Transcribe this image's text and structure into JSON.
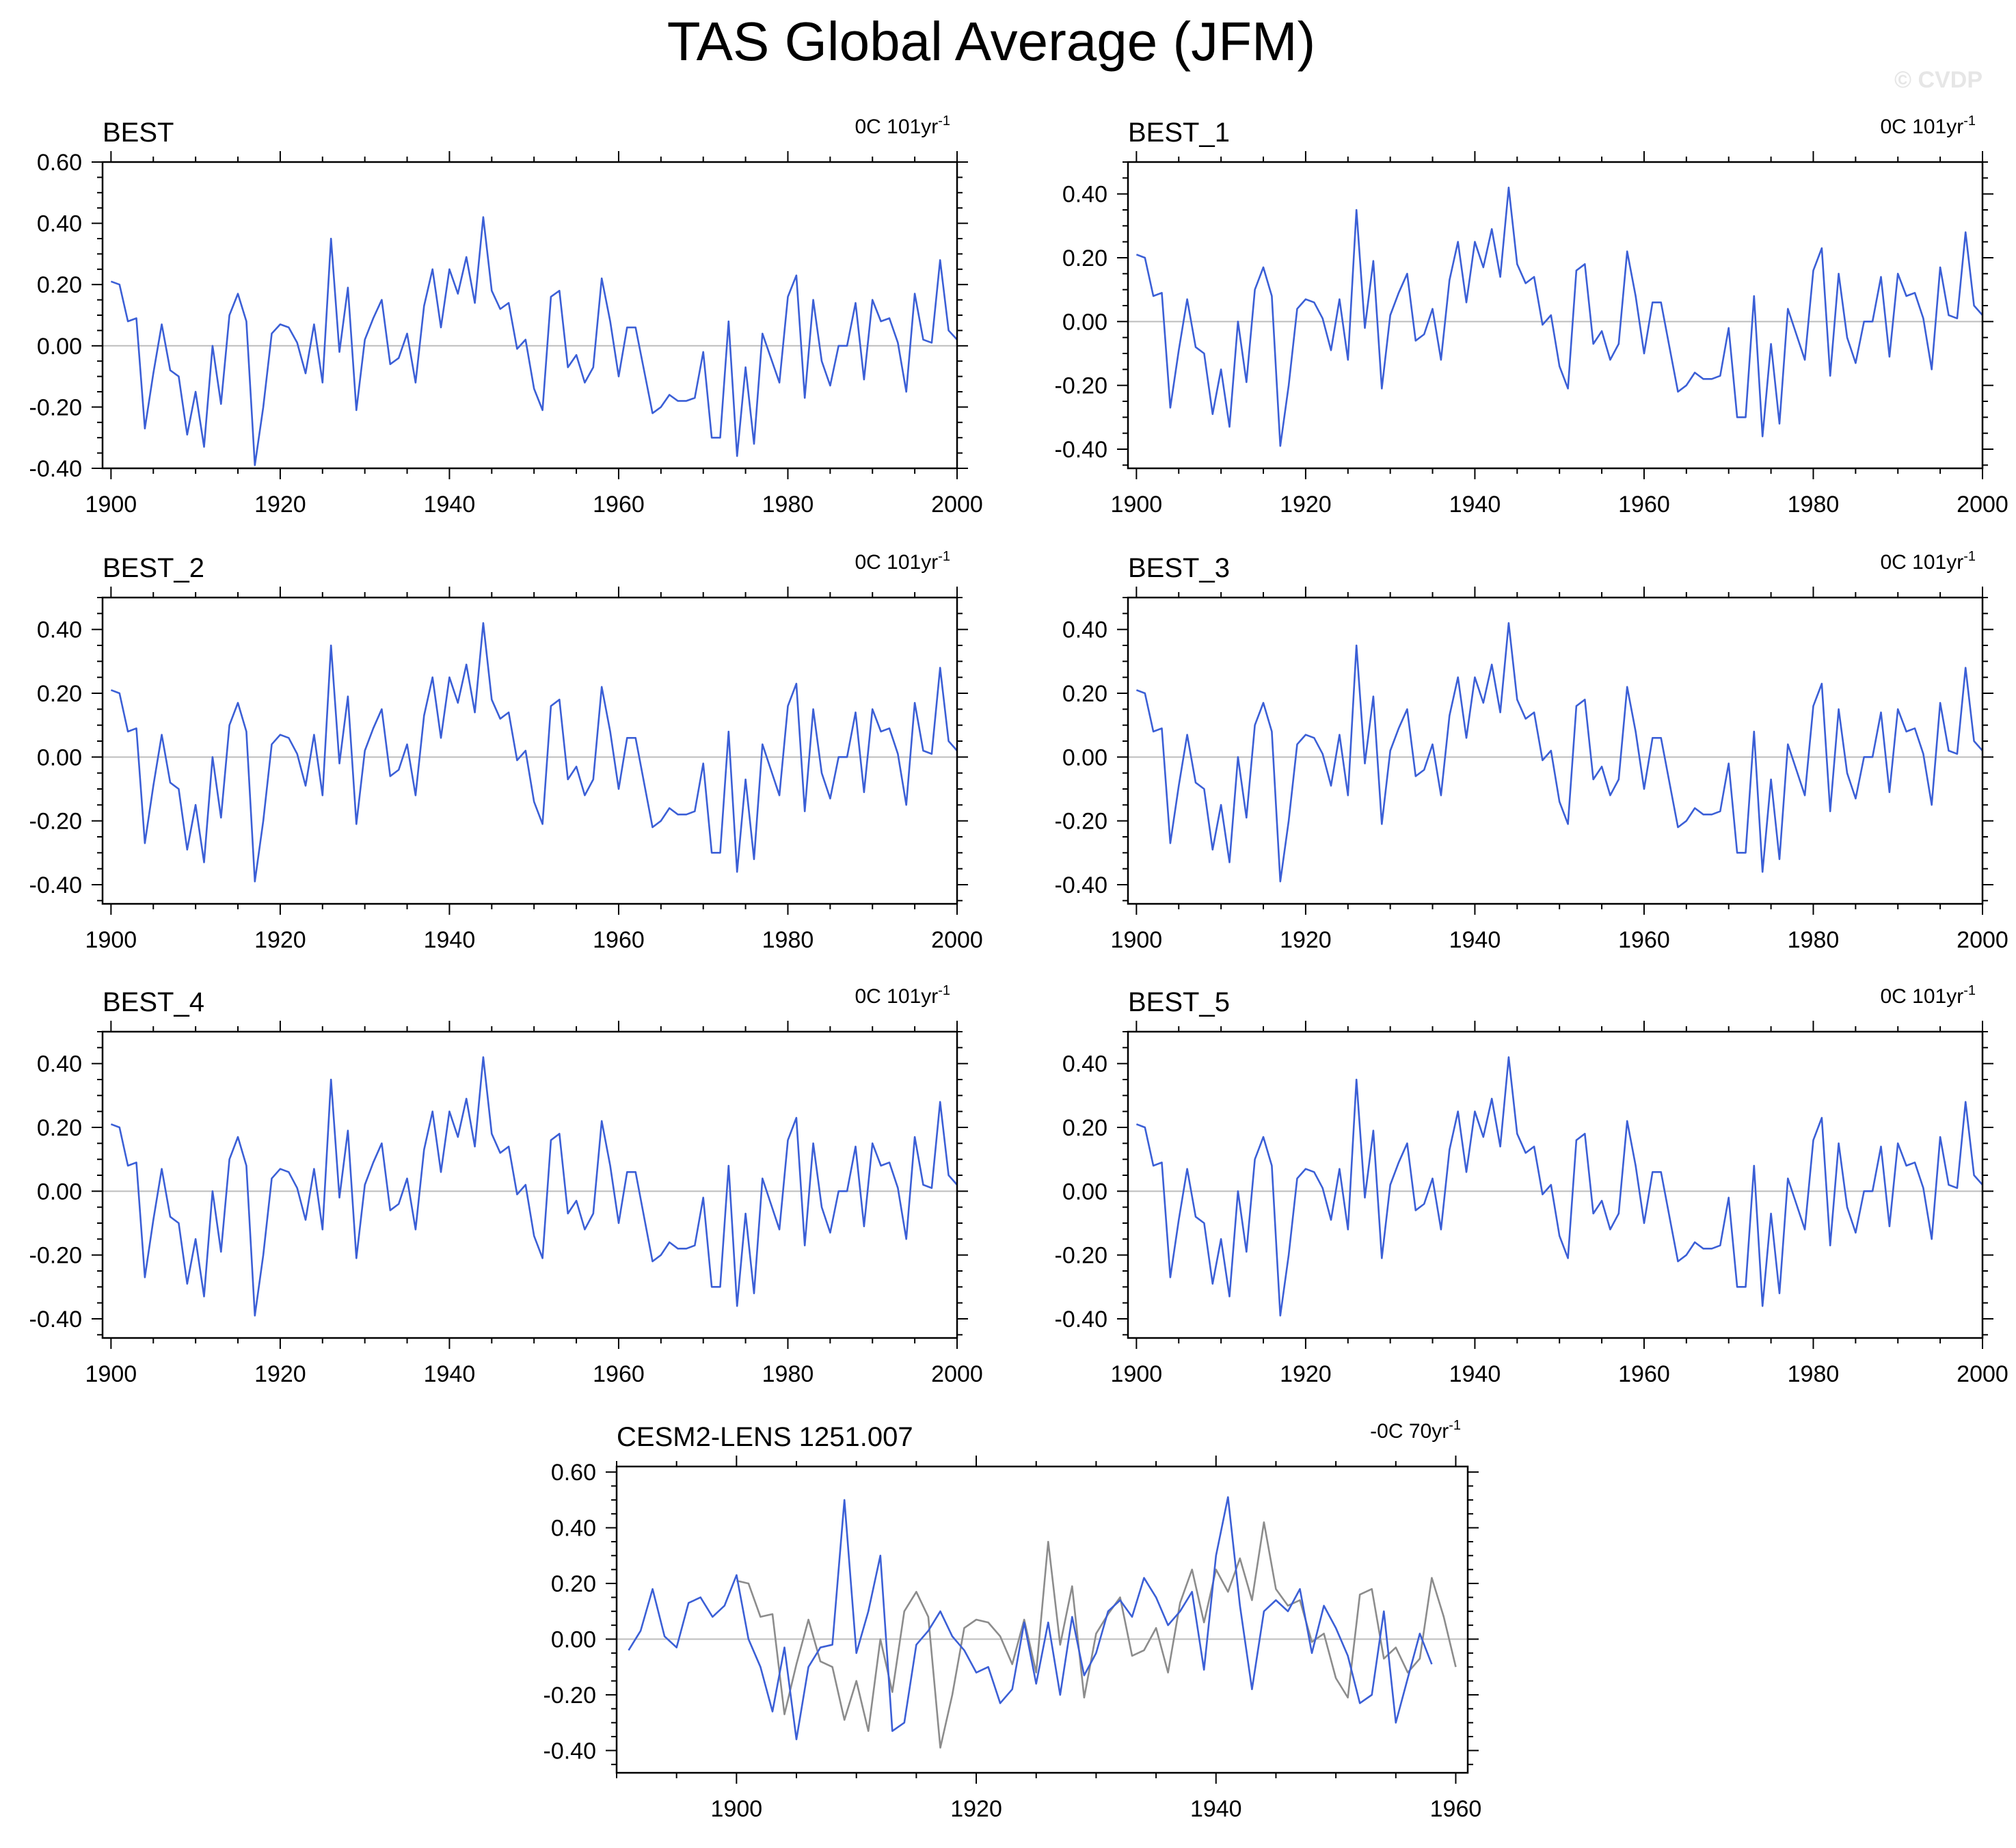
{
  "title": "TAS Global Average (JFM)",
  "watermark": "© CVDP",
  "colors": {
    "series": "#3b5fd6",
    "observations": "#8c8c8c",
    "zero_line": "#bdbdbd",
    "frame": "#000000"
  },
  "chart_data": [
    {
      "type": "line",
      "title": "BEST",
      "trend": "0C 101yr",
      "trend_sup": "-1",
      "xlim": [
        1899,
        2000
      ],
      "ylim": [
        -0.4,
        0.6
      ],
      "xticks": [
        1900,
        1920,
        1940,
        1960,
        1980,
        2000
      ],
      "yticks": [
        -0.4,
        -0.2,
        0.0,
        0.2,
        0.4,
        0.6
      ],
      "ytick_labels": [
        "-0.40",
        "-0.20",
        "0.00",
        "0.20",
        "0.40",
        "0.60"
      ],
      "grid": false,
      "series": [
        {
          "x_start": 1900,
          "values": [
            0.21,
            0.2,
            0.08,
            0.09,
            -0.27,
            -0.09,
            0.07,
            -0.08,
            -0.1,
            -0.29,
            -0.15,
            -0.33,
            0.0,
            -0.19,
            0.1,
            0.17,
            0.08,
            -0.39,
            -0.2,
            0.04,
            0.07,
            0.06,
            0.01,
            -0.09,
            0.07,
            -0.12,
            0.35,
            -0.02,
            0.19,
            -0.21,
            0.02,
            0.09,
            0.15,
            -0.06,
            -0.04,
            0.04,
            -0.12,
            0.13,
            0.25,
            0.06,
            0.25,
            0.17,
            0.29,
            0.14,
            0.42,
            0.18,
            0.12,
            0.14,
            -0.01,
            0.02,
            -0.14,
            -0.21,
            0.16,
            0.18,
            -0.07,
            -0.03,
            -0.12,
            -0.07,
            0.22,
            0.08,
            -0.1,
            0.06,
            0.06,
            -0.08,
            -0.22,
            -0.2,
            -0.16,
            -0.18,
            -0.18,
            -0.17,
            -0.02,
            -0.3,
            -0.3,
            0.08,
            -0.36,
            -0.07,
            -0.32,
            0.04,
            -0.04,
            -0.12,
            0.16,
            0.23,
            -0.17,
            0.15,
            -0.05,
            -0.13,
            0.0,
            0.0,
            0.14,
            -0.11,
            0.15,
            0.08,
            0.09,
            0.01,
            -0.15,
            0.17,
            0.02,
            0.01,
            0.28,
            0.05,
            0.02
          ]
        }
      ]
    },
    {
      "type": "line",
      "title": "BEST_1",
      "trend": "0C 101yr",
      "trend_sup": "-1",
      "xlim": [
        1899,
        2000
      ],
      "ylim": [
        -0.46,
        0.5
      ],
      "xticks": [
        1900,
        1920,
        1940,
        1960,
        1980,
        2000
      ],
      "yticks": [
        -0.4,
        -0.2,
        0.0,
        0.2,
        0.4
      ],
      "ytick_labels": [
        "-0.40",
        "-0.20",
        "0.00",
        "0.20",
        "0.40"
      ],
      "grid": false,
      "series": [
        {
          "x_start": 1900,
          "values": [
            0.21,
            0.2,
            0.08,
            0.09,
            -0.27,
            -0.09,
            0.07,
            -0.08,
            -0.1,
            -0.29,
            -0.15,
            -0.33,
            0.0,
            -0.19,
            0.1,
            0.17,
            0.08,
            -0.39,
            -0.2,
            0.04,
            0.07,
            0.06,
            0.01,
            -0.09,
            0.07,
            -0.12,
            0.35,
            -0.02,
            0.19,
            -0.21,
            0.02,
            0.09,
            0.15,
            -0.06,
            -0.04,
            0.04,
            -0.12,
            0.13,
            0.25,
            0.06,
            0.25,
            0.17,
            0.29,
            0.14,
            0.42,
            0.18,
            0.12,
            0.14,
            -0.01,
            0.02,
            -0.14,
            -0.21,
            0.16,
            0.18,
            -0.07,
            -0.03,
            -0.12,
            -0.07,
            0.22,
            0.08,
            -0.1,
            0.06,
            0.06,
            -0.08,
            -0.22,
            -0.2,
            -0.16,
            -0.18,
            -0.18,
            -0.17,
            -0.02,
            -0.3,
            -0.3,
            0.08,
            -0.36,
            -0.07,
            -0.32,
            0.04,
            -0.04,
            -0.12,
            0.16,
            0.23,
            -0.17,
            0.15,
            -0.05,
            -0.13,
            0.0,
            0.0,
            0.14,
            -0.11,
            0.15,
            0.08,
            0.09,
            0.01,
            -0.15,
            0.17,
            0.02,
            0.01,
            0.28,
            0.05,
            0.02
          ]
        }
      ]
    },
    {
      "type": "line",
      "title": "BEST_2",
      "trend": "0C 101yr",
      "trend_sup": "-1",
      "xlim": [
        1899,
        2000
      ],
      "ylim": [
        -0.46,
        0.5
      ],
      "xticks": [
        1900,
        1920,
        1940,
        1960,
        1980,
        2000
      ],
      "yticks": [
        -0.4,
        -0.2,
        0.0,
        0.2,
        0.4
      ],
      "ytick_labels": [
        "-0.40",
        "-0.20",
        "0.00",
        "0.20",
        "0.40"
      ],
      "grid": false,
      "series": [
        {
          "x_start": 1900,
          "values": [
            0.21,
            0.2,
            0.08,
            0.09,
            -0.27,
            -0.09,
            0.07,
            -0.08,
            -0.1,
            -0.29,
            -0.15,
            -0.33,
            0.0,
            -0.19,
            0.1,
            0.17,
            0.08,
            -0.39,
            -0.2,
            0.04,
            0.07,
            0.06,
            0.01,
            -0.09,
            0.07,
            -0.12,
            0.35,
            -0.02,
            0.19,
            -0.21,
            0.02,
            0.09,
            0.15,
            -0.06,
            -0.04,
            0.04,
            -0.12,
            0.13,
            0.25,
            0.06,
            0.25,
            0.17,
            0.29,
            0.14,
            0.42,
            0.18,
            0.12,
            0.14,
            -0.01,
            0.02,
            -0.14,
            -0.21,
            0.16,
            0.18,
            -0.07,
            -0.03,
            -0.12,
            -0.07,
            0.22,
            0.08,
            -0.1,
            0.06,
            0.06,
            -0.08,
            -0.22,
            -0.2,
            -0.16,
            -0.18,
            -0.18,
            -0.17,
            -0.02,
            -0.3,
            -0.3,
            0.08,
            -0.36,
            -0.07,
            -0.32,
            0.04,
            -0.04,
            -0.12,
            0.16,
            0.23,
            -0.17,
            0.15,
            -0.05,
            -0.13,
            0.0,
            0.0,
            0.14,
            -0.11,
            0.15,
            0.08,
            0.09,
            0.01,
            -0.15,
            0.17,
            0.02,
            0.01,
            0.28,
            0.05,
            0.02
          ]
        }
      ]
    },
    {
      "type": "line",
      "title": "BEST_3",
      "trend": "0C 101yr",
      "trend_sup": "-1",
      "xlim": [
        1899,
        2000
      ],
      "ylim": [
        -0.46,
        0.5
      ],
      "xticks": [
        1900,
        1920,
        1940,
        1960,
        1980,
        2000
      ],
      "yticks": [
        -0.4,
        -0.2,
        0.0,
        0.2,
        0.4
      ],
      "ytick_labels": [
        "-0.40",
        "-0.20",
        "0.00",
        "0.20",
        "0.40"
      ],
      "grid": false,
      "series": [
        {
          "x_start": 1900,
          "values": [
            0.21,
            0.2,
            0.08,
            0.09,
            -0.27,
            -0.09,
            0.07,
            -0.08,
            -0.1,
            -0.29,
            -0.15,
            -0.33,
            0.0,
            -0.19,
            0.1,
            0.17,
            0.08,
            -0.39,
            -0.2,
            0.04,
            0.07,
            0.06,
            0.01,
            -0.09,
            0.07,
            -0.12,
            0.35,
            -0.02,
            0.19,
            -0.21,
            0.02,
            0.09,
            0.15,
            -0.06,
            -0.04,
            0.04,
            -0.12,
            0.13,
            0.25,
            0.06,
            0.25,
            0.17,
            0.29,
            0.14,
            0.42,
            0.18,
            0.12,
            0.14,
            -0.01,
            0.02,
            -0.14,
            -0.21,
            0.16,
            0.18,
            -0.07,
            -0.03,
            -0.12,
            -0.07,
            0.22,
            0.08,
            -0.1,
            0.06,
            0.06,
            -0.08,
            -0.22,
            -0.2,
            -0.16,
            -0.18,
            -0.18,
            -0.17,
            -0.02,
            -0.3,
            -0.3,
            0.08,
            -0.36,
            -0.07,
            -0.32,
            0.04,
            -0.04,
            -0.12,
            0.16,
            0.23,
            -0.17,
            0.15,
            -0.05,
            -0.13,
            0.0,
            0.0,
            0.14,
            -0.11,
            0.15,
            0.08,
            0.09,
            0.01,
            -0.15,
            0.17,
            0.02,
            0.01,
            0.28,
            0.05,
            0.02
          ]
        }
      ]
    },
    {
      "type": "line",
      "title": "BEST_4",
      "trend": "0C 101yr",
      "trend_sup": "-1",
      "xlim": [
        1899,
        2000
      ],
      "ylim": [
        -0.46,
        0.5
      ],
      "xticks": [
        1900,
        1920,
        1940,
        1960,
        1980,
        2000
      ],
      "yticks": [
        -0.4,
        -0.2,
        0.0,
        0.2,
        0.4
      ],
      "ytick_labels": [
        "-0.40",
        "-0.20",
        "0.00",
        "0.20",
        "0.40"
      ],
      "grid": false,
      "series": [
        {
          "x_start": 1900,
          "values": [
            0.21,
            0.2,
            0.08,
            0.09,
            -0.27,
            -0.09,
            0.07,
            -0.08,
            -0.1,
            -0.29,
            -0.15,
            -0.33,
            0.0,
            -0.19,
            0.1,
            0.17,
            0.08,
            -0.39,
            -0.2,
            0.04,
            0.07,
            0.06,
            0.01,
            -0.09,
            0.07,
            -0.12,
            0.35,
            -0.02,
            0.19,
            -0.21,
            0.02,
            0.09,
            0.15,
            -0.06,
            -0.04,
            0.04,
            -0.12,
            0.13,
            0.25,
            0.06,
            0.25,
            0.17,
            0.29,
            0.14,
            0.42,
            0.18,
            0.12,
            0.14,
            -0.01,
            0.02,
            -0.14,
            -0.21,
            0.16,
            0.18,
            -0.07,
            -0.03,
            -0.12,
            -0.07,
            0.22,
            0.08,
            -0.1,
            0.06,
            0.06,
            -0.08,
            -0.22,
            -0.2,
            -0.16,
            -0.18,
            -0.18,
            -0.17,
            -0.02,
            -0.3,
            -0.3,
            0.08,
            -0.36,
            -0.07,
            -0.32,
            0.04,
            -0.04,
            -0.12,
            0.16,
            0.23,
            -0.17,
            0.15,
            -0.05,
            -0.13,
            0.0,
            0.0,
            0.14,
            -0.11,
            0.15,
            0.08,
            0.09,
            0.01,
            -0.15,
            0.17,
            0.02,
            0.01,
            0.28,
            0.05,
            0.02
          ]
        }
      ]
    },
    {
      "type": "line",
      "title": "BEST_5",
      "trend": "0C 101yr",
      "trend_sup": "-1",
      "xlim": [
        1899,
        2000
      ],
      "ylim": [
        -0.46,
        0.5
      ],
      "xticks": [
        1900,
        1920,
        1940,
        1960,
        1980,
        2000
      ],
      "yticks": [
        -0.4,
        -0.2,
        0.0,
        0.2,
        0.4
      ],
      "ytick_labels": [
        "-0.40",
        "-0.20",
        "0.00",
        "0.20",
        "0.40"
      ],
      "grid": false,
      "series": [
        {
          "x_start": 1900,
          "values": [
            0.21,
            0.2,
            0.08,
            0.09,
            -0.27,
            -0.09,
            0.07,
            -0.08,
            -0.1,
            -0.29,
            -0.15,
            -0.33,
            0.0,
            -0.19,
            0.1,
            0.17,
            0.08,
            -0.39,
            -0.2,
            0.04,
            0.07,
            0.06,
            0.01,
            -0.09,
            0.07,
            -0.12,
            0.35,
            -0.02,
            0.19,
            -0.21,
            0.02,
            0.09,
            0.15,
            -0.06,
            -0.04,
            0.04,
            -0.12,
            0.13,
            0.25,
            0.06,
            0.25,
            0.17,
            0.29,
            0.14,
            0.42,
            0.18,
            0.12,
            0.14,
            -0.01,
            0.02,
            -0.14,
            -0.21,
            0.16,
            0.18,
            -0.07,
            -0.03,
            -0.12,
            -0.07,
            0.22,
            0.08,
            -0.1,
            0.06,
            0.06,
            -0.08,
            -0.22,
            -0.2,
            -0.16,
            -0.18,
            -0.18,
            -0.17,
            -0.02,
            -0.3,
            -0.3,
            0.08,
            -0.36,
            -0.07,
            -0.32,
            0.04,
            -0.04,
            -0.12,
            0.16,
            0.23,
            -0.17,
            0.15,
            -0.05,
            -0.13,
            0.0,
            0.0,
            0.14,
            -0.11,
            0.15,
            0.08,
            0.09,
            0.01,
            -0.15,
            0.17,
            0.02,
            0.01,
            0.28,
            0.05,
            0.02
          ]
        }
      ]
    },
    {
      "type": "line",
      "title": "CESM2-LENS 1251.007",
      "trend": "-0C 70yr",
      "trend_sup": "-1",
      "xlim": [
        1890,
        1961
      ],
      "ylim": [
        -0.48,
        0.62
      ],
      "xticks": [
        1900,
        1920,
        1940,
        1960
      ],
      "yticks": [
        -0.4,
        -0.2,
        0.0,
        0.2,
        0.4,
        0.6
      ],
      "ytick_labels": [
        "-0.40",
        "-0.20",
        "0.00",
        "0.20",
        "0.40",
        "0.60"
      ],
      "grid": false,
      "series": [
        {
          "role": "observations",
          "x_start": 1900,
          "values": [
            0.21,
            0.2,
            0.08,
            0.09,
            -0.27,
            -0.09,
            0.07,
            -0.08,
            -0.1,
            -0.29,
            -0.15,
            -0.33,
            0.0,
            -0.19,
            0.1,
            0.17,
            0.08,
            -0.39,
            -0.2,
            0.04,
            0.07,
            0.06,
            0.01,
            -0.09,
            0.07,
            -0.12,
            0.35,
            -0.02,
            0.19,
            -0.21,
            0.02,
            0.09,
            0.15,
            -0.06,
            -0.04,
            0.04,
            -0.12,
            0.13,
            0.25,
            0.06,
            0.25,
            0.17,
            0.29,
            0.14,
            0.42,
            0.18,
            0.12,
            0.14,
            -0.01,
            0.02,
            -0.14,
            -0.21,
            0.16,
            0.18,
            -0.07,
            -0.03,
            -0.12,
            -0.07,
            0.22,
            0.08,
            -0.1
          ]
        },
        {
          "role": "model",
          "x_start": 1891,
          "values": [
            -0.04,
            0.03,
            0.18,
            0.01,
            -0.03,
            0.13,
            0.15,
            0.08,
            0.12,
            0.23,
            0.0,
            -0.1,
            -0.26,
            -0.03,
            -0.36,
            -0.1,
            -0.03,
            -0.02,
            0.5,
            -0.05,
            0.1,
            0.3,
            -0.33,
            -0.3,
            -0.02,
            0.03,
            0.1,
            0.01,
            -0.04,
            -0.12,
            -0.1,
            -0.23,
            -0.18,
            0.06,
            -0.16,
            0.06,
            -0.2,
            0.08,
            -0.13,
            -0.05,
            0.1,
            0.14,
            0.08,
            0.22,
            0.15,
            0.05,
            0.1,
            0.17,
            -0.11,
            0.3,
            0.51,
            0.12,
            -0.18,
            0.1,
            0.14,
            0.1,
            0.18,
            -0.05,
            0.12,
            0.04,
            -0.06,
            -0.23,
            -0.2,
            0.1,
            -0.3,
            -0.14,
            0.02,
            -0.09
          ]
        }
      ]
    }
  ]
}
